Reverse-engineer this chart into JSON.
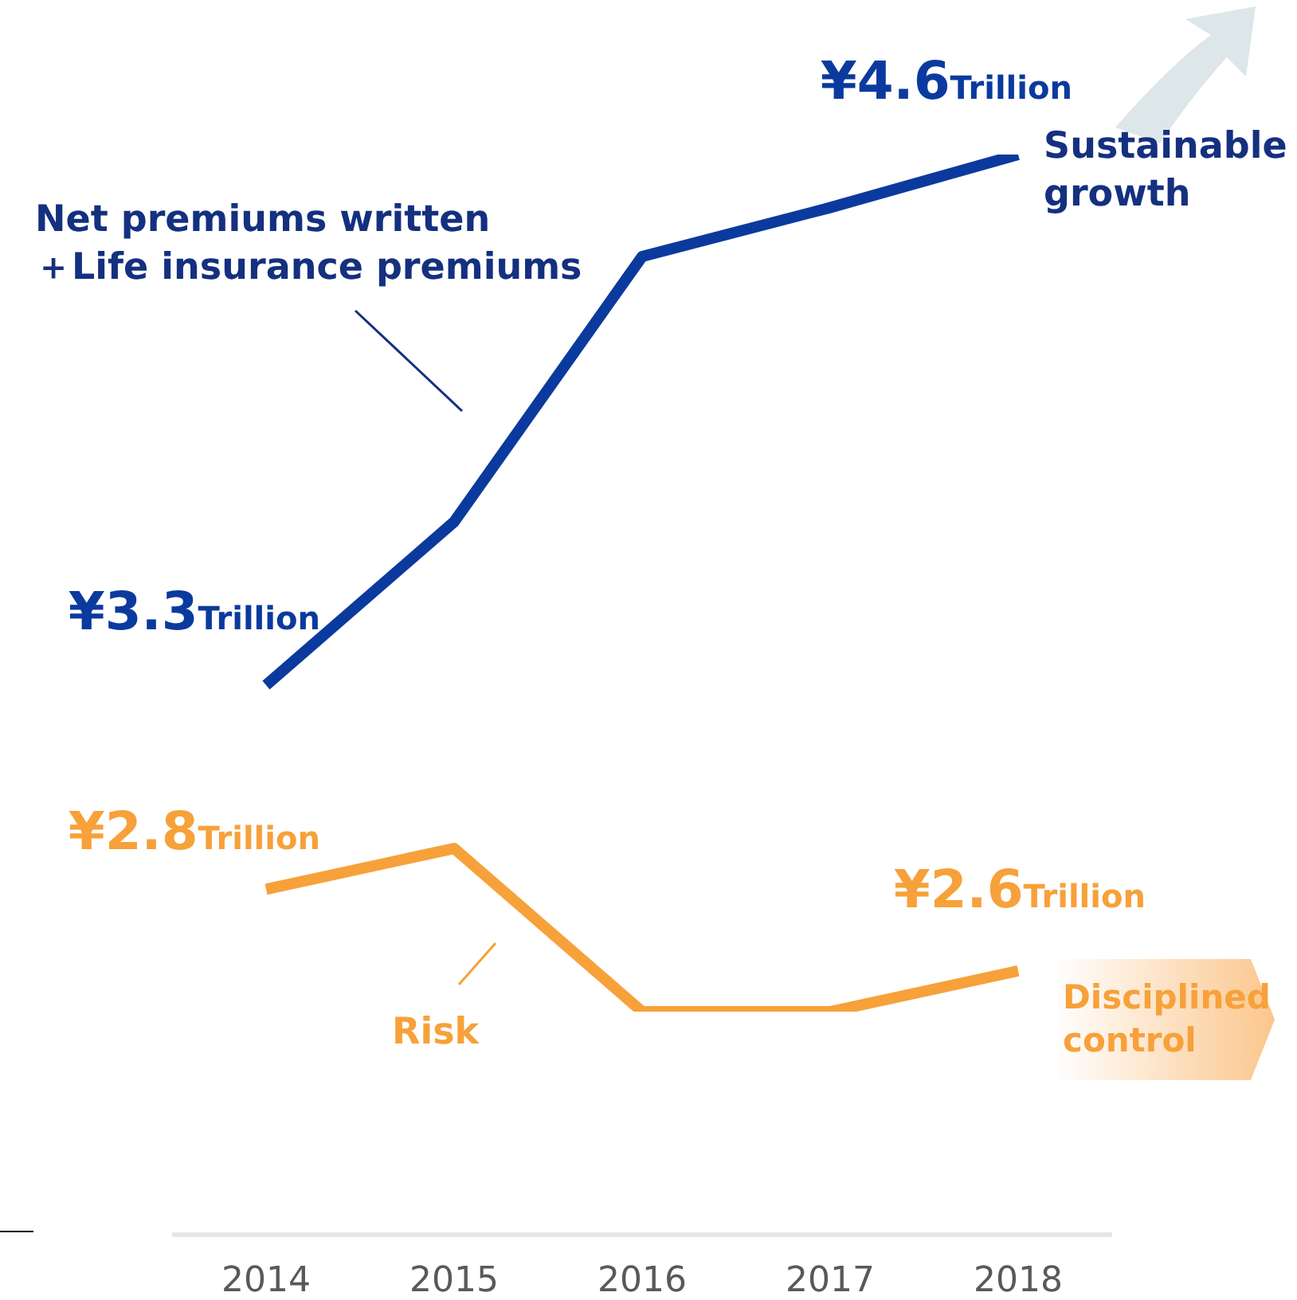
{
  "chart_data": {
    "type": "line",
    "categories": [
      "2014",
      "2015",
      "2016",
      "2017",
      "2018"
    ],
    "series": [
      {
        "color": "#0b3a9e",
        "values": [
          3.3,
          3.7,
          4.35,
          4.47,
          4.6
        ],
        "value_labels": [
          "¥3.3Trillion",
          null,
          null,
          null,
          "¥4.6Trillion"
        ]
      },
      {
        "color": "#f7a13a",
        "values": [
          2.8,
          2.9,
          2.5,
          2.5,
          2.6
        ],
        "value_labels": [
          "¥2.8Trillion",
          null,
          null,
          null,
          "¥2.6Trillion"
        ]
      }
    ],
    "annotations": [
      "Net premiums written\n＋Life insurance premiums",
      "Risk",
      "Sustainable\ngrowth",
      "Disciplined\ncontrol"
    ],
    "grid": false,
    "legend": false,
    "marker": "none",
    "line_style": "solid"
  }
}
